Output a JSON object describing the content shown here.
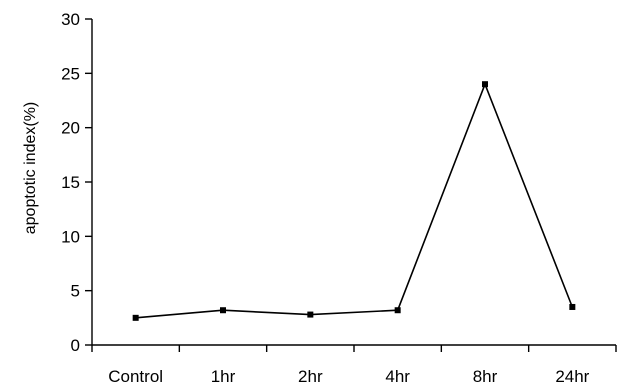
{
  "chart_data": {
    "type": "line",
    "categories": [
      "Control",
      "1hr",
      "2hr",
      "4hr",
      "8hr",
      "24hr"
    ],
    "series": [
      {
        "values": [
          2.5,
          3.2,
          2.8,
          3.2,
          24,
          3.5
        ],
        "color": "#000000",
        "marker": "square"
      }
    ],
    "xlabel": "",
    "ylabel": "apoptotic index(%)",
    "ylim": [
      0,
      30
    ],
    "yticks": [
      0,
      5,
      10,
      15,
      20,
      25,
      30
    ],
    "grid": false,
    "legend": "none"
  }
}
